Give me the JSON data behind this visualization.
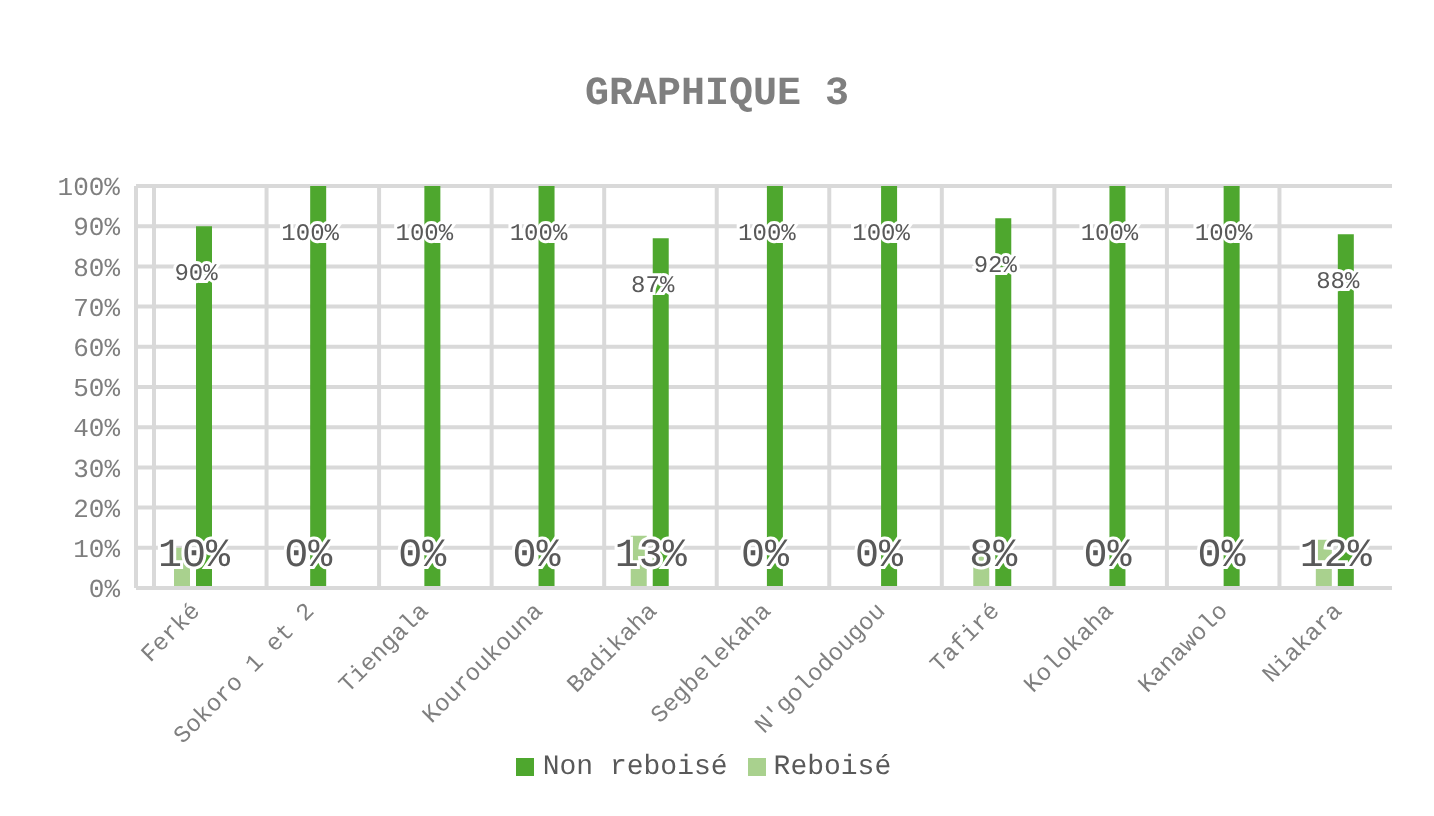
{
  "chart_data": {
    "type": "bar",
    "title": "GRAPHIQUE 3",
    "categories": [
      "Ferké",
      "Sokoro 1 et 2",
      "Tiengala",
      "Kouroukouna",
      "Badikaha",
      "Segbelekaha",
      "N'golodougou",
      "Tafiré",
      "Kolokaha",
      "Kanawolo",
      "Niakara"
    ],
    "series": [
      {
        "name": "Reboisé",
        "color": "#a9d18e",
        "values": [
          10,
          0,
          0,
          0,
          13,
          0,
          0,
          8,
          0,
          0,
          12
        ],
        "value_labels": [
          "10%",
          "0%",
          "0%",
          "0%",
          "13%",
          "0%",
          "0%",
          "8%",
          "0%",
          "0%",
          "12%"
        ]
      },
      {
        "name": "Non reboisé",
        "color": "#4ea72e",
        "values": [
          90,
          100,
          100,
          100,
          87,
          100,
          100,
          92,
          100,
          100,
          88
        ],
        "value_labels": [
          "90%",
          "100%",
          "100%",
          "100%",
          "87%",
          "100%",
          "100%",
          "92%",
          "100%",
          "100%",
          "88%"
        ]
      }
    ],
    "ylim": [
      0,
      100
    ],
    "yticks": [
      {
        "value": 0,
        "label": "0%"
      },
      {
        "value": 10,
        "label": "10%"
      },
      {
        "value": 20,
        "label": "20%"
      },
      {
        "value": 30,
        "label": "30%"
      },
      {
        "value": 40,
        "label": "40%"
      },
      {
        "value": 50,
        "label": "50%"
      },
      {
        "value": 60,
        "label": "60%"
      },
      {
        "value": 70,
        "label": "70%"
      },
      {
        "value": 80,
        "label": "80%"
      },
      {
        "value": 90,
        "label": "90%"
      },
      {
        "value": 100,
        "label": "100%"
      }
    ],
    "grid": true,
    "legend": "bottom"
  }
}
